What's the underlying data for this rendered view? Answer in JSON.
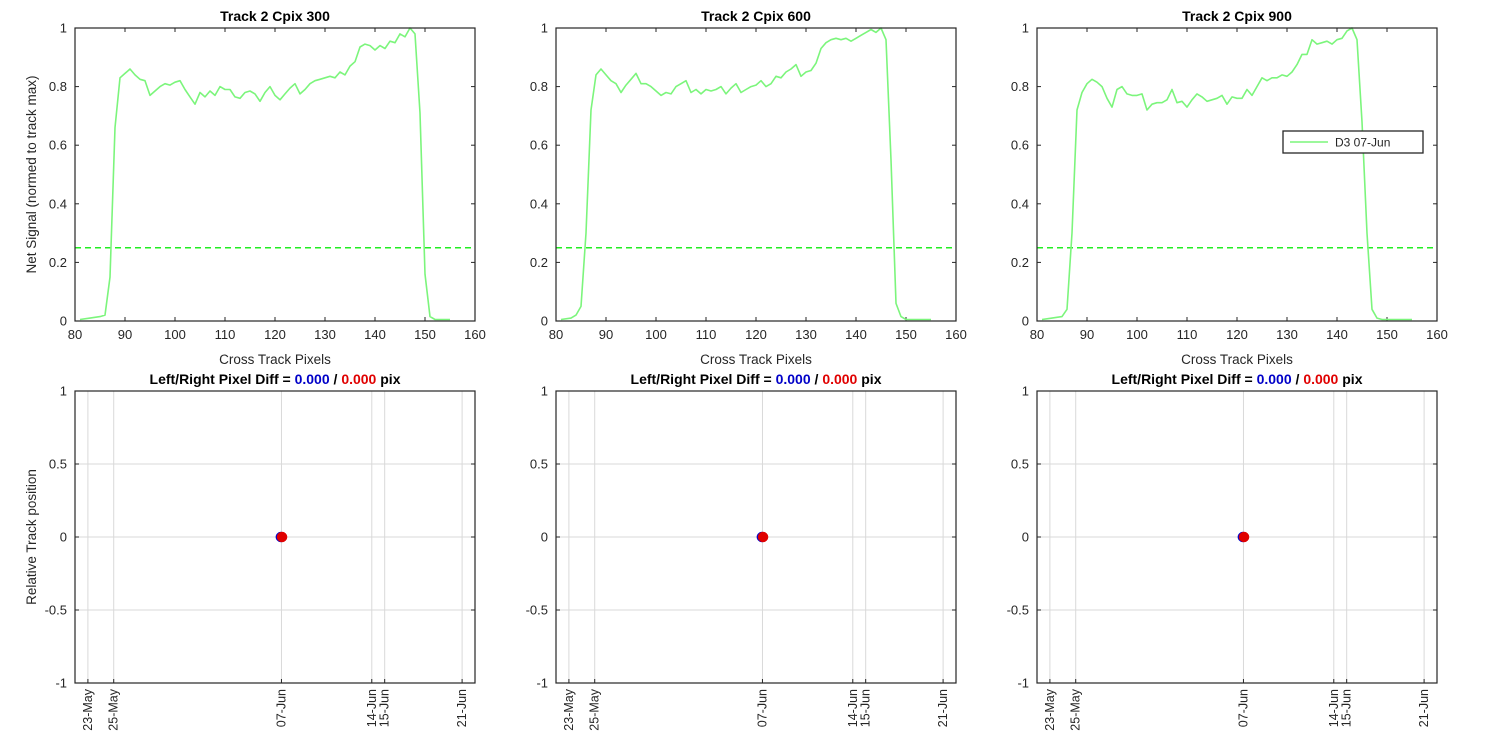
{
  "chart_data": [
    {
      "type": "line",
      "title": "Track 2  Cpix 300",
      "xlabel": "Cross Track Pixels",
      "ylabel": "Net Signal (normed to track max)",
      "xlim": [
        80,
        160
      ],
      "ylim": [
        0,
        1
      ],
      "xticks": [
        80,
        90,
        100,
        110,
        120,
        130,
        140,
        150,
        160
      ],
      "yticks": [
        0,
        0.2,
        0.4,
        0.6,
        0.8,
        1
      ],
      "grid": false,
      "threshold": 0.25,
      "series": [
        {
          "name": "D3 07-Jun",
          "color": "#7cf57c",
          "x": [
            81,
            83,
            85,
            86,
            87,
            88,
            89,
            90,
            91,
            92,
            93,
            94,
            95,
            96,
            97,
            98,
            99,
            100,
            101,
            102,
            103,
            104,
            105,
            106,
            107,
            108,
            109,
            110,
            111,
            112,
            113,
            114,
            115,
            116,
            117,
            118,
            119,
            120,
            121,
            122,
            123,
            124,
            125,
            126,
            127,
            128,
            129,
            130,
            131,
            132,
            133,
            134,
            135,
            136,
            137,
            138,
            139,
            140,
            141,
            142,
            143,
            144,
            145,
            146,
            147,
            148,
            149,
            150,
            151,
            152,
            153,
            155
          ],
          "y": [
            0.005,
            0.01,
            0.015,
            0.02,
            0.15,
            0.66,
            0.83,
            0.845,
            0.86,
            0.84,
            0.825,
            0.82,
            0.77,
            0.785,
            0.8,
            0.81,
            0.805,
            0.815,
            0.82,
            0.79,
            0.765,
            0.74,
            0.78,
            0.765,
            0.785,
            0.77,
            0.8,
            0.79,
            0.79,
            0.765,
            0.76,
            0.78,
            0.785,
            0.775,
            0.75,
            0.78,
            0.8,
            0.77,
            0.755,
            0.775,
            0.795,
            0.81,
            0.775,
            0.79,
            0.81,
            0.82,
            0.825,
            0.83,
            0.835,
            0.83,
            0.85,
            0.84,
            0.87,
            0.885,
            0.935,
            0.945,
            0.94,
            0.925,
            0.94,
            0.93,
            0.955,
            0.95,
            0.98,
            0.97,
            1.0,
            0.98,
            0.71,
            0.16,
            0.015,
            0.005,
            0.005,
            0.005
          ]
        }
      ]
    },
    {
      "type": "line",
      "title": "Track 2  Cpix 600",
      "xlabel": "Cross Track Pixels",
      "ylabel": "",
      "xlim": [
        80,
        160
      ],
      "ylim": [
        0,
        1
      ],
      "xticks": [
        80,
        90,
        100,
        110,
        120,
        130,
        140,
        150,
        160
      ],
      "yticks": [
        0,
        0.2,
        0.4,
        0.6,
        0.8,
        1
      ],
      "grid": false,
      "threshold": 0.25,
      "series": [
        {
          "name": "D3 07-Jun",
          "color": "#7cf57c",
          "x": [
            81,
            83,
            84,
            85,
            86,
            87,
            88,
            89,
            90,
            91,
            92,
            93,
            94,
            95,
            96,
            97,
            98,
            99,
            100,
            101,
            102,
            103,
            104,
            105,
            106,
            107,
            108,
            109,
            110,
            111,
            112,
            113,
            114,
            115,
            116,
            117,
            118,
            119,
            120,
            121,
            122,
            123,
            124,
            125,
            126,
            127,
            128,
            129,
            130,
            131,
            132,
            133,
            134,
            135,
            136,
            137,
            138,
            139,
            140,
            141,
            142,
            143,
            144,
            145,
            146,
            147,
            148,
            149,
            150,
            151,
            152,
            153,
            155
          ],
          "y": [
            0.005,
            0.01,
            0.02,
            0.05,
            0.3,
            0.72,
            0.84,
            0.86,
            0.84,
            0.82,
            0.81,
            0.78,
            0.805,
            0.825,
            0.845,
            0.81,
            0.81,
            0.8,
            0.785,
            0.77,
            0.78,
            0.775,
            0.8,
            0.81,
            0.82,
            0.78,
            0.79,
            0.775,
            0.79,
            0.785,
            0.79,
            0.8,
            0.775,
            0.795,
            0.81,
            0.78,
            0.79,
            0.8,
            0.805,
            0.82,
            0.8,
            0.81,
            0.835,
            0.83,
            0.85,
            0.86,
            0.875,
            0.835,
            0.85,
            0.855,
            0.88,
            0.93,
            0.95,
            0.96,
            0.965,
            0.96,
            0.965,
            0.955,
            0.965,
            0.975,
            0.985,
            0.995,
            0.985,
            1.0,
            0.96,
            0.55,
            0.06,
            0.015,
            0.005,
            0.005,
            0.005,
            0.005,
            0.005
          ]
        }
      ]
    },
    {
      "type": "line",
      "title": "Track 2  Cpix 900",
      "xlabel": "Cross Track Pixels",
      "ylabel": "",
      "xlim": [
        80,
        160
      ],
      "ylim": [
        0,
        1
      ],
      "xticks": [
        80,
        90,
        100,
        110,
        120,
        130,
        140,
        150,
        160
      ],
      "yticks": [
        0,
        0.2,
        0.4,
        0.6,
        0.8,
        1
      ],
      "grid": false,
      "threshold": 0.25,
      "legend": {
        "entries": [
          "D3 07-Jun"
        ],
        "location": "middle-right"
      },
      "series": [
        {
          "name": "D3 07-Jun",
          "color": "#7cf57c",
          "x": [
            81,
            83,
            85,
            86,
            87,
            88,
            89,
            90,
            91,
            92,
            93,
            94,
            95,
            96,
            97,
            98,
            99,
            100,
            101,
            102,
            103,
            104,
            105,
            106,
            107,
            108,
            109,
            110,
            111,
            112,
            113,
            114,
            115,
            116,
            117,
            118,
            119,
            120,
            121,
            122,
            123,
            124,
            125,
            126,
            127,
            128,
            129,
            130,
            131,
            132,
            133,
            134,
            135,
            136,
            137,
            138,
            139,
            140,
            141,
            142,
            143,
            144,
            145,
            146,
            147,
            148,
            149,
            150,
            151,
            152,
            153,
            155
          ],
          "y": [
            0.005,
            0.01,
            0.015,
            0.04,
            0.3,
            0.72,
            0.78,
            0.81,
            0.825,
            0.815,
            0.8,
            0.76,
            0.73,
            0.79,
            0.8,
            0.775,
            0.77,
            0.77,
            0.775,
            0.72,
            0.74,
            0.745,
            0.745,
            0.755,
            0.79,
            0.745,
            0.75,
            0.73,
            0.755,
            0.775,
            0.765,
            0.75,
            0.755,
            0.76,
            0.77,
            0.74,
            0.765,
            0.76,
            0.76,
            0.79,
            0.77,
            0.8,
            0.83,
            0.82,
            0.83,
            0.83,
            0.84,
            0.835,
            0.85,
            0.875,
            0.91,
            0.91,
            0.96,
            0.945,
            0.95,
            0.955,
            0.945,
            0.96,
            0.965,
            0.99,
            1.0,
            0.96,
            0.68,
            0.3,
            0.04,
            0.01,
            0.005,
            0.005,
            0.005,
            0.005,
            0.005,
            0.005
          ]
        }
      ]
    },
    {
      "type": "scatter",
      "title_parts": [
        "Left/Right Pixel Diff = ",
        "0.000",
        " / ",
        "0.000",
        " pix"
      ],
      "title_colors": [
        "#000000",
        "#0000c8",
        "#000000",
        "#e00000",
        "#000000"
      ],
      "xlabel": "",
      "ylabel": "Relative Track position",
      "ylim": [
        -1,
        1
      ],
      "xlim": [
        "2023-05-22",
        "2023-06-22"
      ],
      "date_ticks": [
        {
          "date": "2023-05-23",
          "label": "23-May"
        },
        {
          "date": "2023-05-25",
          "label": "25-May"
        },
        {
          "date": "2023-06-07",
          "label": "07-Jun"
        },
        {
          "date": "2023-06-14",
          "label": "14-Jun"
        },
        {
          "date": "2023-06-15",
          "label": "15-Jun"
        },
        {
          "date": "2023-06-21",
          "label": "21-Jun"
        }
      ],
      "yticks": [
        -1,
        -0.5,
        0,
        0.5,
        1
      ],
      "grid": true,
      "points": [
        {
          "date": "2023-06-07",
          "y": 0,
          "color": "#0000c8"
        },
        {
          "date": "2023-06-07",
          "y": 0,
          "color": "#e00000"
        }
      ]
    },
    {
      "type": "scatter",
      "title_parts": [
        "Left/Right Pixel Diff = ",
        "0.000",
        " / ",
        "0.000",
        " pix"
      ],
      "title_colors": [
        "#000000",
        "#0000c8",
        "#000000",
        "#e00000",
        "#000000"
      ],
      "xlabel": "",
      "ylabel": "",
      "ylim": [
        -1,
        1
      ],
      "xlim": [
        "2023-05-22",
        "2023-06-22"
      ],
      "date_ticks": [
        {
          "date": "2023-05-23",
          "label": "23-May"
        },
        {
          "date": "2023-05-25",
          "label": "25-May"
        },
        {
          "date": "2023-06-07",
          "label": "07-Jun"
        },
        {
          "date": "2023-06-14",
          "label": "14-Jun"
        },
        {
          "date": "2023-06-15",
          "label": "15-Jun"
        },
        {
          "date": "2023-06-21",
          "label": "21-Jun"
        }
      ],
      "yticks": [
        -1,
        -0.5,
        0,
        0.5,
        1
      ],
      "grid": true,
      "points": [
        {
          "date": "2023-06-07",
          "y": 0,
          "color": "#0000c8"
        },
        {
          "date": "2023-06-07",
          "y": 0,
          "color": "#e00000"
        }
      ]
    },
    {
      "type": "scatter",
      "title_parts": [
        "Left/Right Pixel Diff = ",
        "0.000",
        " / ",
        "0.000",
        " pix"
      ],
      "title_colors": [
        "#000000",
        "#0000c8",
        "#000000",
        "#e00000",
        "#000000"
      ],
      "xlabel": "",
      "ylabel": "",
      "ylim": [
        -1,
        1
      ],
      "xlim": [
        "2023-05-22",
        "2023-06-22"
      ],
      "date_ticks": [
        {
          "date": "2023-05-23",
          "label": "23-May"
        },
        {
          "date": "2023-05-25",
          "label": "25-May"
        },
        {
          "date": "2023-06-07",
          "label": "07-Jun"
        },
        {
          "date": "2023-06-14",
          "label": "14-Jun"
        },
        {
          "date": "2023-06-15",
          "label": "15-Jun"
        },
        {
          "date": "2023-06-21",
          "label": "21-Jun"
        }
      ],
      "yticks": [
        -1,
        -0.5,
        0,
        0.5,
        1
      ],
      "grid": true,
      "points": [
        {
          "date": "2023-06-07",
          "y": 0,
          "color": "#0000c8"
        },
        {
          "date": "2023-06-07",
          "y": 0,
          "color": "#e00000"
        }
      ]
    }
  ]
}
